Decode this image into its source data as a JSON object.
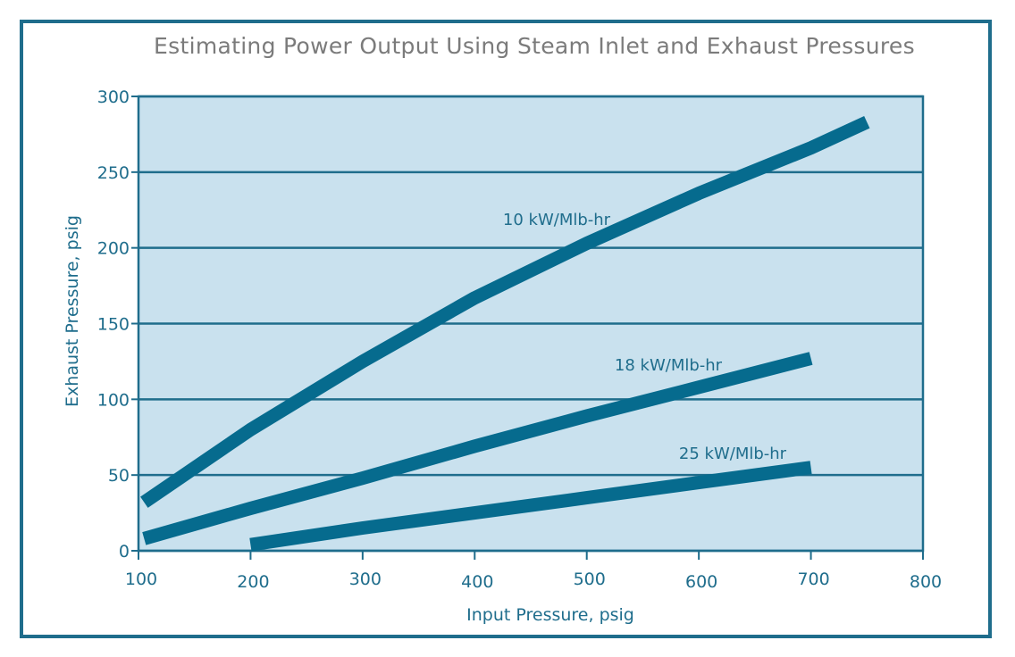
{
  "chart_data": {
    "type": "line",
    "title": "Estimating Power Output Using Steam Inlet and Exhaust Pressures",
    "xlabel": "Input Pressure, psig",
    "ylabel": "Exhaust Pressure, psig",
    "xlim": [
      100,
      800
    ],
    "ylim": [
      0,
      300
    ],
    "xticks": [
      100,
      200,
      300,
      400,
      500,
      600,
      700,
      800
    ],
    "yticks": [
      0,
      50,
      100,
      150,
      200,
      250,
      300
    ],
    "grid": "horizontal",
    "legend": "inline labels",
    "series": [
      {
        "name": "10 kW/Mlb-hr",
        "x": [
          105,
          200,
          300,
          400,
          500,
          600,
          700,
          750
        ],
        "y": [
          32,
          80,
          125,
          167,
          203,
          236,
          266,
          283
        ]
      },
      {
        "name": "18 kW/Mlb-hr",
        "x": [
          105,
          200,
          300,
          400,
          500,
          600,
          700
        ],
        "y": [
          8,
          28,
          48,
          69,
          89,
          108,
          127
        ]
      },
      {
        "name": "25 kW/Mlb-hr",
        "x": [
          200,
          300,
          400,
          500,
          600,
          700
        ],
        "y": [
          4,
          15,
          25,
          35,
          45,
          55
        ]
      }
    ]
  },
  "colors": {
    "frame": "#1f6d8c",
    "plot_background": "#c9e1ee",
    "line": "#066b8e",
    "text": "#1f6d8c",
    "title": "#7b7b7b"
  }
}
